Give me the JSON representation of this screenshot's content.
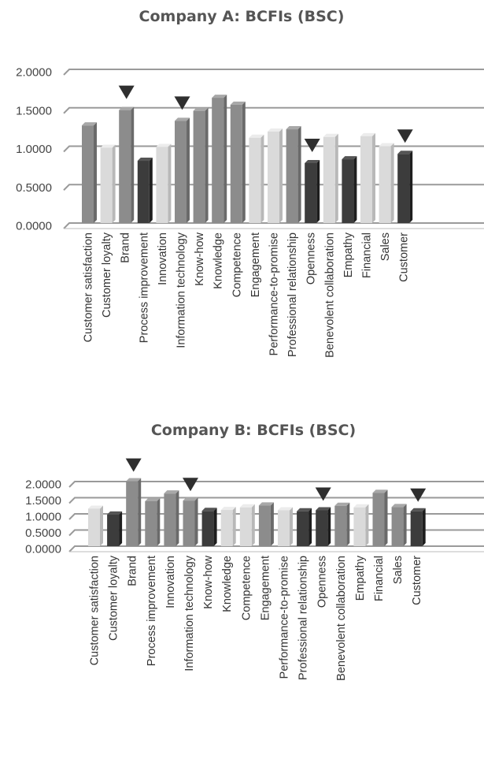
{
  "colors": {
    "mid": "#8c8c8c",
    "light": "#dadada",
    "dark": "#3c3c3c",
    "gridline": "#9a9a9a",
    "marker": "#2f2f2f"
  },
  "chart_data": [
    {
      "type": "bar",
      "title": "Company A: BCFIs (BSC)",
      "ylim": [
        0,
        2
      ],
      "yticks": [
        "0.0000",
        "0.5000",
        "1.0000",
        "1.5000",
        "2.0000"
      ],
      "tick_values": [
        0,
        0.5,
        1,
        1.5,
        2
      ],
      "grid": true,
      "style": "3d-bars",
      "categories": [
        "Customer satisfaction",
        "Customer loyalty",
        "Brand",
        "Process improvement",
        "Innovation",
        "Information technology",
        "Know-how",
        "Knowledge",
        "Competence",
        "Engagement",
        "Performance-to-promise",
        "Professional relationship",
        "Openness",
        "Benevolent collaboration",
        "Empathy",
        "Financial",
        "Sales",
        "Customer"
      ],
      "values": [
        1.27,
        0.98,
        1.47,
        0.81,
        0.99,
        1.33,
        1.46,
        1.63,
        1.54,
        1.11,
        1.19,
        1.22,
        0.78,
        1.12,
        0.83,
        1.13,
        1.0,
        0.9
      ],
      "shades": [
        "mid",
        "light",
        "mid",
        "dark",
        "light",
        "mid",
        "mid",
        "mid",
        "mid",
        "light",
        "light",
        "mid",
        "dark",
        "light",
        "dark",
        "light",
        "light",
        "dark"
      ],
      "markers": [
        "Brand",
        "Information technology",
        "Openness",
        "Customer"
      ]
    },
    {
      "type": "bar",
      "title": "Company B: BCFIs (BSC)",
      "ylim": [
        0,
        2
      ],
      "yticks": [
        "0.0000",
        "0.5000",
        "1.0000",
        "1.5000",
        "2.0000"
      ],
      "tick_values": [
        0,
        0.5,
        1,
        1.5,
        2
      ],
      "grid": true,
      "style": "3d-bars",
      "categories": [
        "Customer satisfaction",
        "Customer loyalty",
        "Brand",
        "Process improvement",
        "Innovation",
        "Information technology",
        "Know-how",
        "Knowledge",
        "Competence",
        "Engagement",
        "Performance-to-promise",
        "Professional relationship",
        "Openness",
        "Benevolent collaboration",
        "Empathy",
        "Financial",
        "Sales",
        "Customer"
      ],
      "values": [
        1.16,
        0.98,
        2.01,
        1.39,
        1.63,
        1.41,
        1.09,
        1.12,
        1.2,
        1.26,
        1.11,
        1.08,
        1.11,
        1.25,
        1.2,
        1.65,
        1.21,
        1.08
      ],
      "shades": [
        "light",
        "dark",
        "mid",
        "mid",
        "mid",
        "mid",
        "dark",
        "light",
        "light",
        "mid",
        "light",
        "dark",
        "dark",
        "mid",
        "light",
        "mid",
        "mid",
        "dark"
      ],
      "markers": [
        "Brand",
        "Information technology",
        "Openness",
        "Customer"
      ]
    }
  ]
}
